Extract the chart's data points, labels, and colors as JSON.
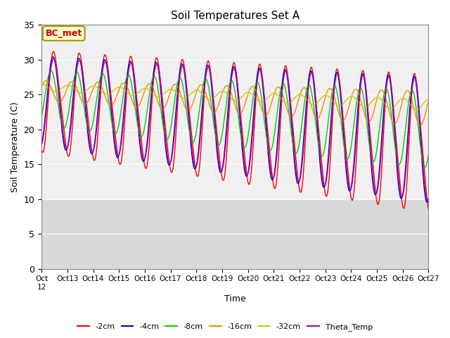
{
  "title": "Soil Temperatures Set A",
  "xlabel": "Time",
  "ylabel": "Soil Temperature (C)",
  "ylim": [
    0,
    35
  ],
  "yticks": [
    0,
    5,
    10,
    15,
    20,
    25,
    30,
    35
  ],
  "annotation_text": "BC_met",
  "annotation_bg": "#ffffcc",
  "annotation_border": "#999900",
  "annotation_text_color": "#cc0000",
  "bg_color_upper": "#f0f0f0",
  "bg_color_lower": "#d8d8d8",
  "bg_split": 10,
  "line_colors": {
    "-2cm": "#ff0000",
    "-4cm": "#0000cc",
    "-8cm": "#00cc00",
    "-16cm": "#ff8800",
    "-32cm": "#cccc00",
    "Theta_Temp": "#aa00aa"
  },
  "x_tick_labels": [
    "Oct 12",
    "Oct 13",
    "Oct 14",
    "Oct 15",
    "Oct 16",
    "Oct 17",
    "Oct 18",
    "Oct 19",
    "Oct 20",
    "Oct 21",
    "Oct 22",
    "Oct 23",
    "Oct 24",
    "Oct 25",
    "Oct 26",
    "Oct 27"
  ],
  "legend_order": [
    "-2cm",
    "-4cm",
    "-8cm",
    "-16cm",
    "-32cm",
    "Theta_Temp"
  ]
}
